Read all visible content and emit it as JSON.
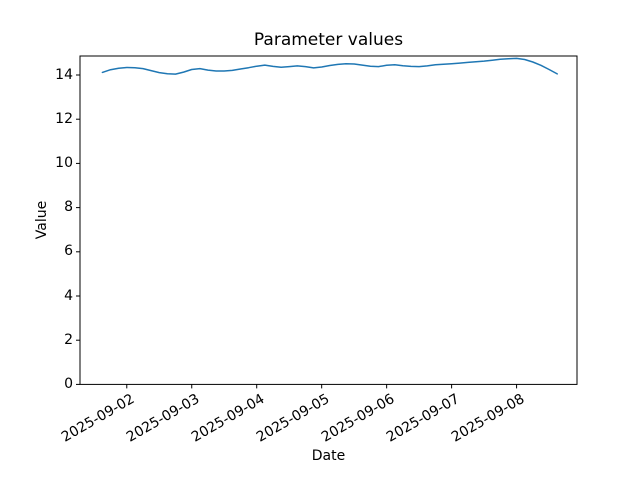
{
  "chart_data": {
    "type": "line",
    "title": "Parameter values",
    "xlabel": "Date",
    "ylabel": "Value",
    "grid": false,
    "legend": "none",
    "background_color": "#ffffff",
    "axis_color": "#000000",
    "line_color": "#1f77b4",
    "y_ticks": [
      0,
      2,
      4,
      6,
      8,
      10,
      12,
      14
    ],
    "ylim": [
      0,
      14.86
    ],
    "x_tick_labels": [
      "2025-09-02",
      "2025-09-03",
      "2025-09-04",
      "2025-09-05",
      "2025-09-06",
      "2025-09-07",
      "2025-09-08"
    ],
    "x_tick_days": [
      0,
      1,
      2,
      3,
      4,
      5,
      6
    ],
    "x_unit": "days from 2025-09-02 00:00",
    "xlim_days": [
      -0.72,
      6.93
    ],
    "series": [
      {
        "name": "parameter",
        "x_days": [
          -0.375,
          -0.25,
          -0.125,
          0,
          0.125,
          0.25,
          0.375,
          0.5,
          0.625,
          0.75,
          0.875,
          1,
          1.125,
          1.25,
          1.375,
          1.5,
          1.625,
          1.75,
          1.875,
          2,
          2.125,
          2.25,
          2.375,
          2.5,
          2.625,
          2.75,
          2.875,
          3,
          3.125,
          3.25,
          3.375,
          3.5,
          3.625,
          3.75,
          3.875,
          4,
          4.125,
          4.25,
          4.375,
          4.5,
          4.625,
          4.75,
          4.875,
          5,
          5.125,
          5.25,
          5.375,
          5.5,
          5.625,
          5.75,
          5.875,
          6,
          6.125,
          6.25,
          6.375,
          6.5,
          6.625
        ],
        "values": [
          14.12,
          14.24,
          14.31,
          14.34,
          14.33,
          14.29,
          14.2,
          14.11,
          14.06,
          14.04,
          14.13,
          14.25,
          14.29,
          14.22,
          14.18,
          14.18,
          14.21,
          14.27,
          14.33,
          14.4,
          14.45,
          14.39,
          14.35,
          14.38,
          14.41,
          14.38,
          14.32,
          14.36,
          14.43,
          14.48,
          14.51,
          14.5,
          14.45,
          14.4,
          14.38,
          14.44,
          14.46,
          14.42,
          14.39,
          14.38,
          14.41,
          14.46,
          14.49,
          14.51,
          14.54,
          14.57,
          14.6,
          14.63,
          14.67,
          14.71,
          14.74,
          14.75,
          14.7,
          14.59,
          14.44,
          14.25,
          14.05
        ]
      }
    ]
  }
}
